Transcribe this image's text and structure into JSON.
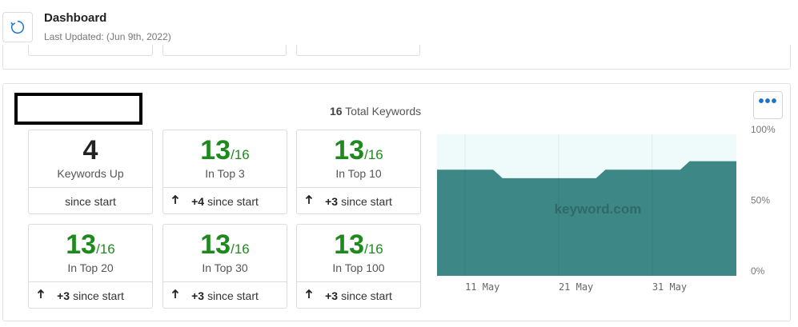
{
  "header": {
    "title": "Dashboard",
    "last_updated": "Last Updated: (Jun 9th, 2022)"
  },
  "panel": {
    "total_keywords_count": "16",
    "total_keywords_label": "Total Keywords",
    "more_label": "•••"
  },
  "cards": [
    {
      "value": "4",
      "denom": "",
      "label": "Keywords Up",
      "delta": "",
      "footer": "since start",
      "arrow": ""
    },
    {
      "value": "13",
      "denom": "/16",
      "label": "In Top 3",
      "delta": "+4",
      "footer": "since start",
      "arrow": "🠕"
    },
    {
      "value": "13",
      "denom": "/16",
      "label": "In Top 10",
      "delta": "+3",
      "footer": "since start",
      "arrow": "🠕"
    },
    {
      "value": "13",
      "denom": "/16",
      "label": "In Top 20",
      "delta": "+3",
      "footer": "since start",
      "arrow": "🠕"
    },
    {
      "value": "13",
      "denom": "/16",
      "label": "In Top 30",
      "delta": "+3",
      "footer": "since start",
      "arrow": "🠕"
    },
    {
      "value": "13",
      "denom": "/16",
      "label": "In Top 100",
      "delta": "+3",
      "footer": "since start",
      "arrow": "🠕"
    }
  ],
  "colors": {
    "green": "#1e8a1e",
    "area_fill": "#3d8787",
    "area_bg": "#effbfb",
    "accent": "#1a73c8"
  },
  "chart_data": {
    "type": "area",
    "watermark": "keyword.com",
    "x": [
      "May 8",
      "May 9",
      "May 10",
      "May 11",
      "May 12",
      "May 13",
      "May 14",
      "May 15",
      "May 16",
      "May 17",
      "May 18",
      "May 19",
      "May 20",
      "May 21",
      "May 22",
      "May 23",
      "May 24",
      "May 25",
      "May 26",
      "May 27",
      "May 28",
      "May 29",
      "May 30",
      "May 31",
      "Jun 1",
      "Jun 2",
      "Jun 3",
      "Jun 4",
      "Jun 5",
      "Jun 6",
      "Jun 7",
      "Jun 8",
      "Jun 9"
    ],
    "values": [
      75,
      75,
      75,
      75,
      75,
      75,
      75,
      69,
      69,
      69,
      69,
      69,
      69,
      69,
      69,
      69,
      69,
      69,
      75,
      75,
      75,
      75,
      75,
      75,
      75,
      75,
      75,
      81,
      81,
      81,
      81,
      81,
      81
    ],
    "ylim": [
      0,
      100
    ],
    "ytick_labels": [
      "100%",
      "50%",
      "0%"
    ],
    "xtick_labels": [
      "11 May",
      "21 May",
      "31 May"
    ],
    "xtick_dates": [
      "May 11",
      "May 21",
      "May 31"
    ]
  }
}
